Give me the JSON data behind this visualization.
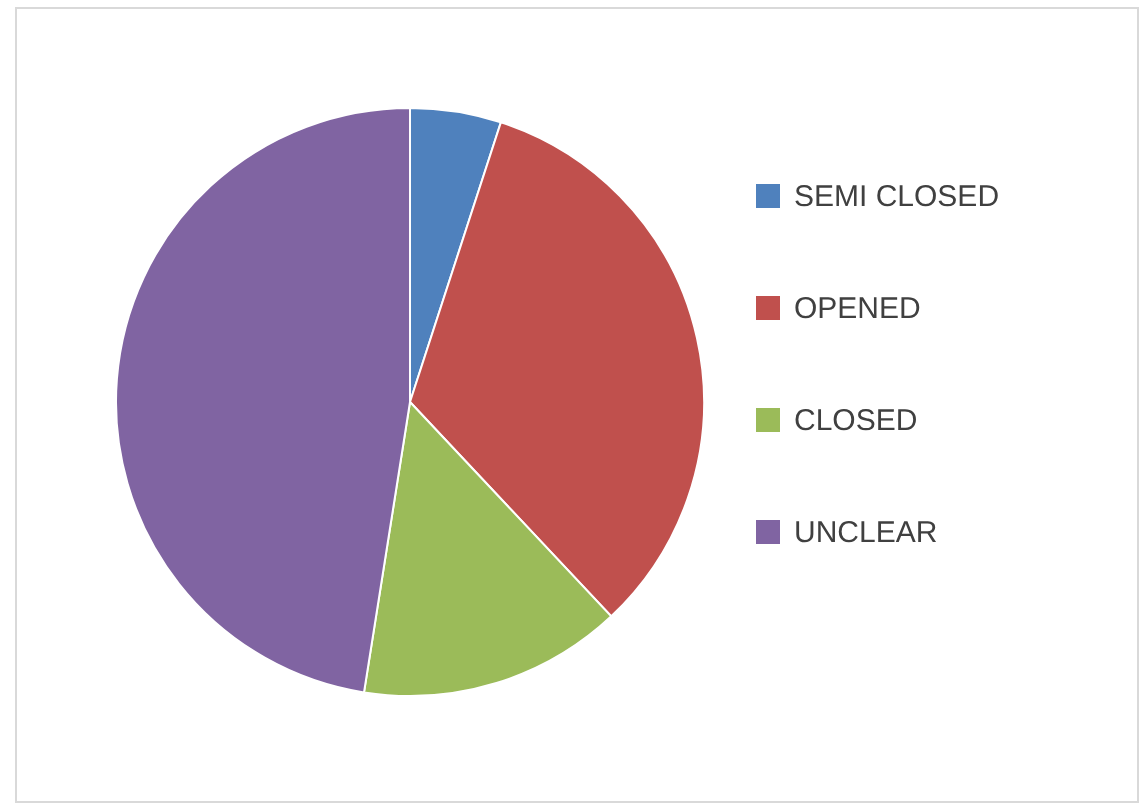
{
  "chart_data": {
    "type": "pie",
    "categories": [
      "SEMI CLOSED",
      "OPENED",
      "CLOSED",
      "UNCLEAR"
    ],
    "values": [
      5,
      33,
      14.5,
      47.5
    ],
    "colors": [
      "#4f81bd",
      "#c0504d",
      "#9bbb59",
      "#8064a2"
    ],
    "legend": "right"
  }
}
